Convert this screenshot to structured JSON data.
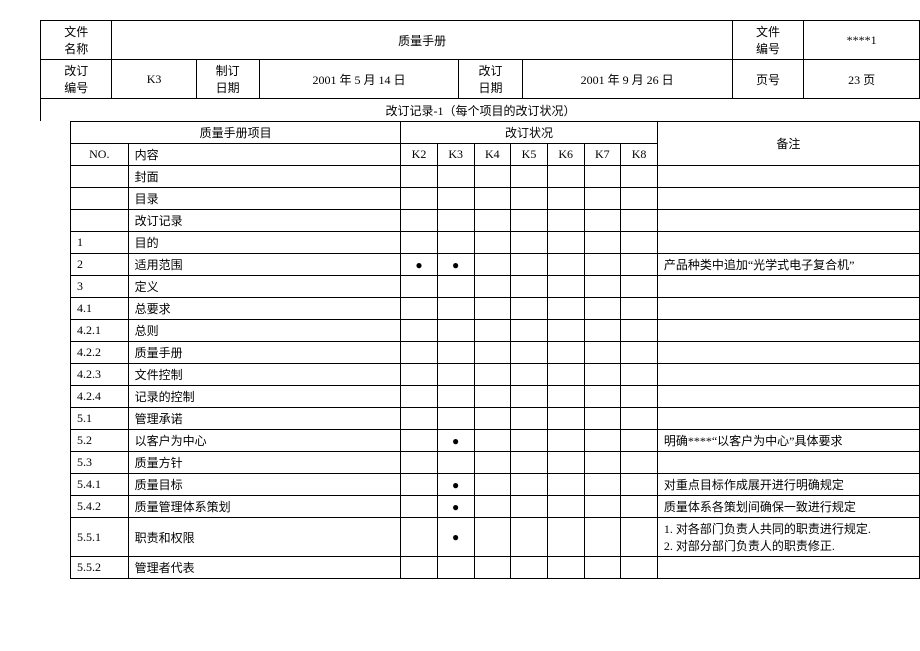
{
  "header": {
    "file_name_label": "文件\n名称",
    "file_name_value": "质量手册",
    "file_no_label": "文件\n编号",
    "file_no_value": "****1",
    "rev_no_label": "改订\n编号",
    "rev_no_value": "K3",
    "create_date_label": "制订\n日期",
    "create_date_value": "2001 年 5 月 14 日",
    "rev_date_label": "改订\n日期",
    "rev_date_value": "2001 年 9 月 26 日",
    "page_label": "页号",
    "page_value": "23 页"
  },
  "subtitle": "改订记录-1（每个项目的改订状况）",
  "columns": {
    "group_project": "质量手册项目",
    "group_status": "改订状况",
    "remark": "备注",
    "no": "NO.",
    "content": "内容",
    "k2": "K2",
    "k3": "K3",
    "k4": "K4",
    "k5": "K5",
    "k6": "K6",
    "k7": "K7",
    "k8": "K8"
  },
  "dot": "●",
  "rows": [
    {
      "no": "",
      "content": "封面",
      "k2": "",
      "k3": "",
      "k4": "",
      "k5": "",
      "k6": "",
      "k7": "",
      "k8": "",
      "remark": ""
    },
    {
      "no": "",
      "content": "目录",
      "k2": "",
      "k3": "",
      "k4": "",
      "k5": "",
      "k6": "",
      "k7": "",
      "k8": "",
      "remark": ""
    },
    {
      "no": "",
      "content": "改订记录",
      "k2": "",
      "k3": "",
      "k4": "",
      "k5": "",
      "k6": "",
      "k7": "",
      "k8": "",
      "remark": ""
    },
    {
      "no": "1",
      "content": "目的",
      "k2": "",
      "k3": "",
      "k4": "",
      "k5": "",
      "k6": "",
      "k7": "",
      "k8": "",
      "remark": ""
    },
    {
      "no": "2",
      "content": "适用范围",
      "k2": "●",
      "k3": "●",
      "k4": "",
      "k5": "",
      "k6": "",
      "k7": "",
      "k8": "",
      "remark": "产品种类中追加“光学式电子复合机”"
    },
    {
      "no": "3",
      "content": "定义",
      "k2": "",
      "k3": "",
      "k4": "",
      "k5": "",
      "k6": "",
      "k7": "",
      "k8": "",
      "remark": ""
    },
    {
      "no": "4.1",
      "content": "总要求",
      "k2": "",
      "k3": "",
      "k4": "",
      "k5": "",
      "k6": "",
      "k7": "",
      "k8": "",
      "remark": ""
    },
    {
      "no": "4.2.1",
      "content": "总则",
      "k2": "",
      "k3": "",
      "k4": "",
      "k5": "",
      "k6": "",
      "k7": "",
      "k8": "",
      "remark": ""
    },
    {
      "no": "4.2.2",
      "content": "质量手册",
      "k2": "",
      "k3": "",
      "k4": "",
      "k5": "",
      "k6": "",
      "k7": "",
      "k8": "",
      "remark": ""
    },
    {
      "no": "4.2.3",
      "content": "文件控制",
      "k2": "",
      "k3": "",
      "k4": "",
      "k5": "",
      "k6": "",
      "k7": "",
      "k8": "",
      "remark": ""
    },
    {
      "no": "4.2.4",
      "content": "记录的控制",
      "k2": "",
      "k3": "",
      "k4": "",
      "k5": "",
      "k6": "",
      "k7": "",
      "k8": "",
      "remark": ""
    },
    {
      "no": "5.1",
      "content": "管理承诺",
      "k2": "",
      "k3": "",
      "k4": "",
      "k5": "",
      "k6": "",
      "k7": "",
      "k8": "",
      "remark": ""
    },
    {
      "no": "5.2",
      "content": "以客户为中心",
      "k2": "",
      "k3": "●",
      "k4": "",
      "k5": "",
      "k6": "",
      "k7": "",
      "k8": "",
      "remark": "明确****“以客户为中心”具体要求"
    },
    {
      "no": "5.3",
      "content": "质量方针",
      "k2": "",
      "k3": "",
      "k4": "",
      "k5": "",
      "k6": "",
      "k7": "",
      "k8": "",
      "remark": ""
    },
    {
      "no": "5.4.1",
      "content": "质量目标",
      "k2": "",
      "k3": "●",
      "k4": "",
      "k5": "",
      "k6": "",
      "k7": "",
      "k8": "",
      "remark": "对重点目标作成展开进行明确规定"
    },
    {
      "no": "5.4.2",
      "content": "质量管理体系策划",
      "k2": "",
      "k3": "●",
      "k4": "",
      "k5": "",
      "k6": "",
      "k7": "",
      "k8": "",
      "remark": "质量体系各策划间确保一致进行规定"
    },
    {
      "no": "5.5.1",
      "content": "职责和权限",
      "k2": "",
      "k3": "●",
      "k4": "",
      "k5": "",
      "k6": "",
      "k7": "",
      "k8": "",
      "remark": "1. 对各部门负责人共同的职责进行规定.\n2. 对部分部门负责人的职责修正."
    },
    {
      "no": "5.5.2",
      "content": "管理者代表",
      "k2": "",
      "k3": "",
      "k4": "",
      "k5": "",
      "k6": "",
      "k7": "",
      "k8": "",
      "remark": ""
    }
  ],
  "layout": {
    "col_widths_header": [
      60,
      70,
      60,
      170,
      60,
      160,
      60,
      70
    ],
    "col_widths_main": {
      "no": 55,
      "content": 260,
      "k": 35,
      "remark": 250
    }
  }
}
